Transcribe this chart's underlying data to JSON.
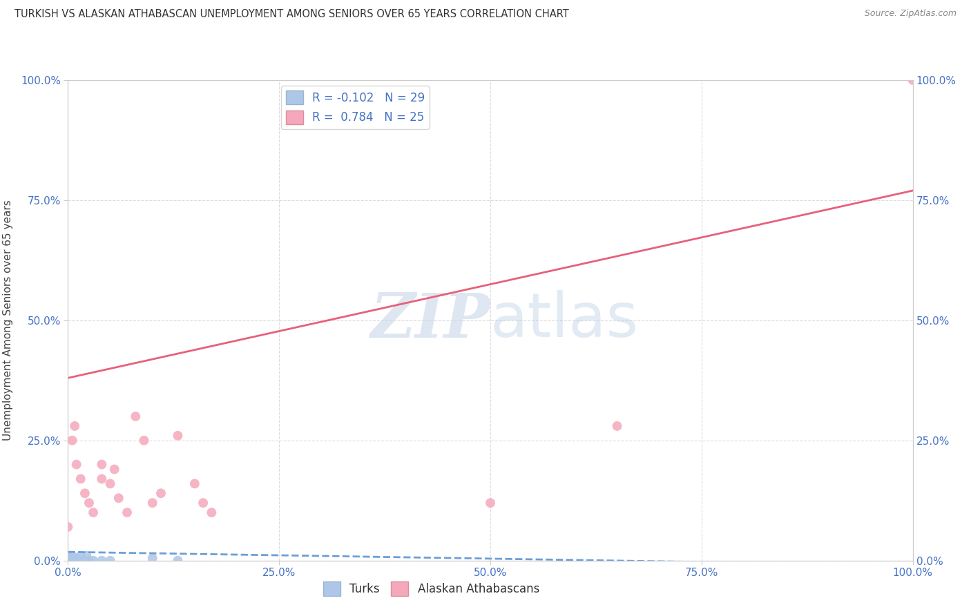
{
  "title": "TURKISH VS ALASKAN ATHABASCAN UNEMPLOYMENT AMONG SENIORS OVER 65 YEARS CORRELATION CHART",
  "source": "Source: ZipAtlas.com",
  "ylabel": "Unemployment Among Seniors over 65 years",
  "turks_R": -0.102,
  "turks_N": 29,
  "alaska_R": 0.784,
  "alaska_N": 25,
  "turks_color": "#aec6e8",
  "alaska_color": "#f5a8bb",
  "turks_line_color": "#6b9fd4",
  "alaska_line_color": "#e8607a",
  "watermark_zip": "ZIP",
  "watermark_atlas": "atlas",
  "xlim": [
    0,
    1
  ],
  "ylim": [
    0,
    1
  ],
  "turks_x": [
    0.0,
    0.0,
    0.0,
    0.0,
    0.0,
    0.0,
    0.0,
    0.0,
    0.0,
    0.0,
    0.0,
    0.002,
    0.003,
    0.005,
    0.005,
    0.007,
    0.008,
    0.01,
    0.01,
    0.012,
    0.015,
    0.02,
    0.022,
    0.025,
    0.03,
    0.04,
    0.05,
    0.1,
    0.13
  ],
  "turks_y": [
    0.0,
    0.0,
    0.0,
    0.0,
    0.0,
    0.0,
    0.002,
    0.003,
    0.005,
    0.007,
    0.01,
    0.0,
    0.005,
    0.0,
    0.01,
    0.0,
    0.005,
    0.0,
    0.005,
    0.0,
    0.01,
    0.0,
    0.01,
    0.0,
    0.0,
    0.0,
    0.0,
    0.005,
    0.0
  ],
  "alaska_x": [
    0.0,
    0.005,
    0.008,
    0.01,
    0.015,
    0.02,
    0.025,
    0.03,
    0.04,
    0.04,
    0.05,
    0.055,
    0.06,
    0.07,
    0.08,
    0.09,
    0.1,
    0.11,
    0.13,
    0.15,
    0.16,
    0.17,
    0.5,
    0.65,
    1.0
  ],
  "alaska_y": [
    0.07,
    0.25,
    0.28,
    0.2,
    0.17,
    0.14,
    0.12,
    0.1,
    0.17,
    0.2,
    0.16,
    0.19,
    0.13,
    0.1,
    0.3,
    0.25,
    0.12,
    0.14,
    0.26,
    0.16,
    0.12,
    0.1,
    0.12,
    0.28,
    1.0
  ],
  "xticks": [
    0.0,
    0.25,
    0.5,
    0.75,
    1.0
  ],
  "xtick_labels": [
    "0.0%",
    "25.0%",
    "50.0%",
    "75.0%",
    "100.0%"
  ],
  "yticks": [
    0.0,
    0.25,
    0.5,
    0.75,
    1.0
  ],
  "ytick_labels": [
    "0.0%",
    "25.0%",
    "50.0%",
    "75.0%",
    "100.0%"
  ],
  "grid_color": "#cccccc",
  "tick_color": "#4472c4",
  "background_color": "#ffffff",
  "marker_size": 100,
  "alaska_line_x0": 0.0,
  "alaska_line_y0": 0.38,
  "alaska_line_x1": 1.0,
  "alaska_line_y1": 0.77,
  "turks_line_x0": 0.0,
  "turks_line_y0": 0.018,
  "turks_line_x1": 1.0,
  "turks_line_y1": -0.01
}
